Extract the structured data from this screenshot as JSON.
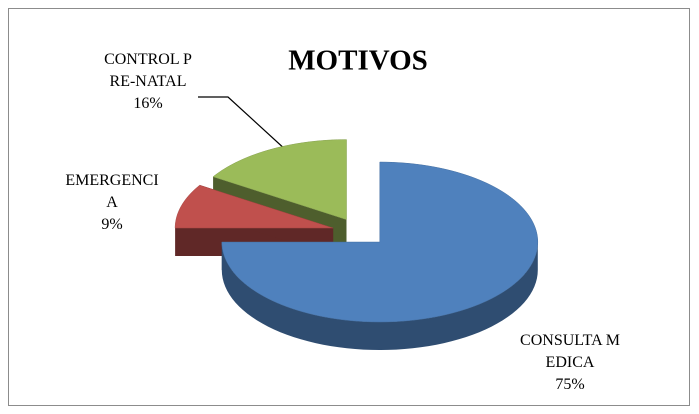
{
  "chart_data": {
    "type": "pie",
    "title": "MOTIVOS",
    "categories": [
      "CONSULTA MEDICA",
      "EMERGENCIA",
      "CONTROL PRE-NATAL"
    ],
    "values": [
      75,
      9,
      16
    ],
    "value_labels": [
      "75%",
      "9%",
      "16%"
    ],
    "colors": [
      "#4f81bd",
      "#c0504d",
      "#9bbb59"
    ],
    "exploded": true,
    "three_d": true
  }
}
